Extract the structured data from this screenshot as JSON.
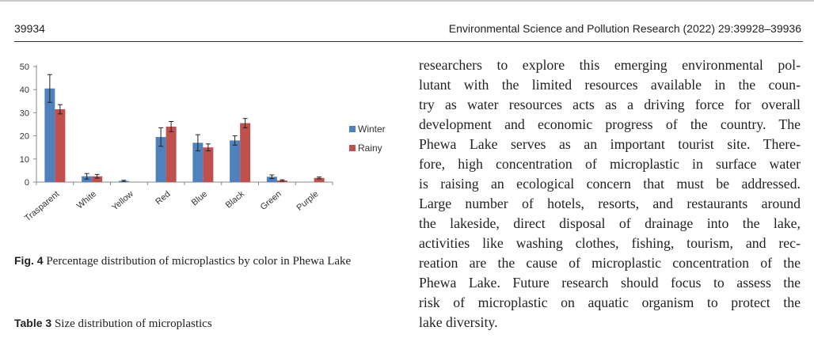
{
  "header": {
    "page_number": "39934",
    "journal": "Environmental Science and Pollution Research (2022) 29:39928–39936"
  },
  "figure": {
    "label": "Fig. 4",
    "caption": "Percentage distribution of microplastics by color in Phewa Lake"
  },
  "table": {
    "label": "Table 3",
    "caption": "Size distribution of microplastics"
  },
  "body_lines": [
    "researchers to explore this emerging environmental pol-",
    "lutant with the limited resources available in the coun-",
    "try as water resources acts as a driving force for overall",
    "development and economic progress of the country. The",
    "Phewa Lake serves as an important tourist site. There-",
    "fore, high concentration of microplastic in surface water",
    "is raising an ecological concern that must be addressed.",
    "Large number of hotels, resorts, and restaurants around",
    "the lakeside, direct disposal of drainage into the lake,",
    "activities like washing clothes, fishing, tourism, and rec-",
    "reation are the cause of microplastic concentration of the",
    "Phewa Lake. Future research should focus to assess the",
    "risk of microplastic on aquatic organism to protect the",
    "lake diversity."
  ],
  "chart_data": {
    "type": "bar",
    "categories": [
      "Trasparent",
      "White",
      "Yellow",
      "Red",
      "Blue",
      "Black",
      "Green",
      "Purple"
    ],
    "series": [
      {
        "name": "Winter",
        "color": "#4f81bd",
        "values": [
          40.5,
          2.5,
          0.5,
          19.5,
          17,
          18,
          2.3,
          0
        ],
        "errors": [
          6,
          1.2,
          0.3,
          4,
          3.5,
          2,
          0.8,
          0
        ]
      },
      {
        "name": "Rainy",
        "color": "#c0504d",
        "values": [
          31.5,
          2.5,
          0,
          24,
          15,
          25.5,
          0.7,
          1.8
        ],
        "errors": [
          2,
          0.8,
          0,
          2.2,
          1.5,
          2,
          0.3,
          0.4
        ]
      }
    ],
    "yticks": [
      0,
      10,
      20,
      30,
      40,
      50
    ],
    "ylim": [
      0,
      50
    ],
    "grid": false,
    "legend": "right"
  }
}
